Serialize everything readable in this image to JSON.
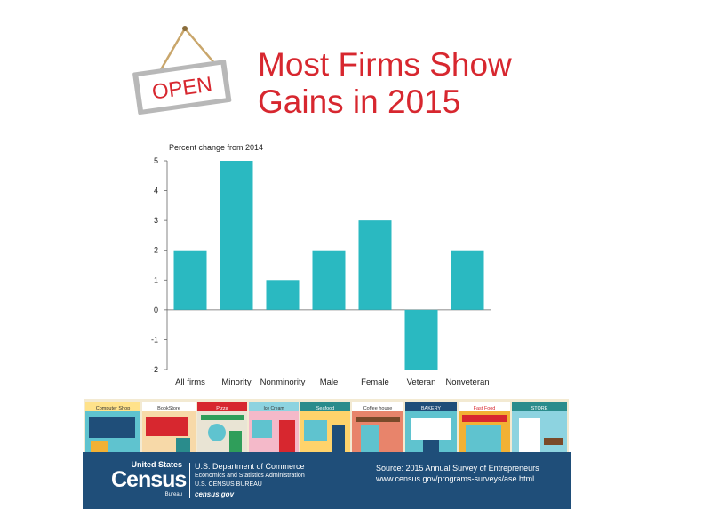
{
  "sign": {
    "label": "OPEN"
  },
  "title": {
    "line1": "Most Firms Show",
    "line2": "Gains in 2015"
  },
  "colors": {
    "bar": "#2ab9c1",
    "title": "#d7272f",
    "footer": "#1f4e79"
  },
  "chart_data": {
    "type": "bar",
    "title": "Most Firms Show Gains in 2015",
    "ylabel": "Percent change from 2014",
    "xlabel": "",
    "categories": [
      "All firms",
      "Minority",
      "Nonminority",
      "Male",
      "Female",
      "Veteran",
      "Nonveteran"
    ],
    "values": [
      2,
      5,
      1,
      2,
      3,
      -2,
      2
    ],
    "ylim": [
      -2,
      5
    ],
    "yticks": [
      -2,
      -1,
      0,
      1,
      2,
      3,
      4,
      5
    ],
    "grid": false,
    "legend": "none"
  },
  "street": {
    "signs": [
      "Computer Shop",
      "BookStore",
      "Pizza",
      "Ice Cream",
      "Seafood",
      "Coffee house",
      "BAKERY",
      "Fast Food",
      "STORE"
    ]
  },
  "footer": {
    "logo_top": "United States",
    "logo_main": "Census",
    "logo_bottom": "Bureau",
    "dept_line1": "U.S. Department of Commerce",
    "dept_line2": "Economics and Statistics Administration",
    "dept_line3": "U.S. CENSUS BUREAU",
    "dept_line4": "census.gov",
    "source_line1": "Source: 2015 Annual Survey of Entrepreneurs",
    "source_line2": "www.census.gov/programs-surveys/ase.html"
  }
}
